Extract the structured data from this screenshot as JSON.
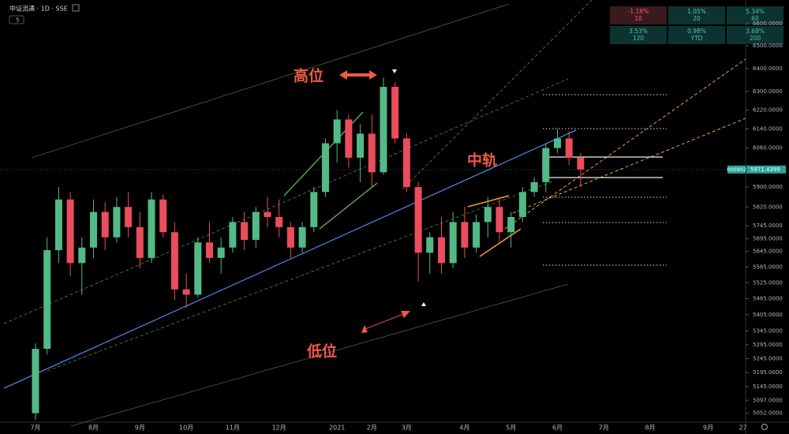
{
  "chart_data": {
    "type": "candlestick",
    "title": "中证流通 · 1D · SSE",
    "symbol": "000902",
    "indicator_count": "5",
    "categories": [
      "7月",
      null,
      null,
      null,
      null,
      "8月",
      null,
      null,
      null,
      "9月",
      null,
      null,
      null,
      "10月",
      null,
      null,
      null,
      "11月",
      null,
      null,
      null,
      "12月",
      null,
      null,
      null,
      null,
      "2021",
      null,
      null,
      "2月",
      null,
      null,
      "3月",
      null,
      null,
      null,
      null,
      "4月",
      null,
      null,
      null,
      "5月",
      null,
      null,
      null,
      "6月",
      null,
      null,
      null,
      "7月",
      null,
      null,
      null,
      "8月",
      null,
      null,
      null,
      null,
      "9月",
      null,
      null,
      "27"
    ],
    "open": [
      5052,
      5280,
      5650,
      5850,
      5600,
      5660,
      5800,
      5700,
      5820,
      5740,
      5620,
      5850,
      5720,
      5500,
      5480,
      5680,
      5620,
      5660,
      5760,
      5690,
      5800,
      5780,
      5740,
      5660,
      5740,
      5880,
      6080,
      6180,
      6020,
      6120,
      5960,
      6320,
      6100,
      5900,
      5640,
      5700,
      5600,
      5760,
      5660,
      5760,
      5820,
      5720,
      5780,
      5880,
      5920,
      6060,
      6100,
      6020,
      null,
      null,
      null,
      null,
      null,
      null,
      null,
      null,
      null,
      null,
      null,
      null,
      null,
      null
    ],
    "high": [
      5300,
      5700,
      5900,
      5880,
      5700,
      5850,
      5840,
      5860,
      5880,
      5800,
      5880,
      5870,
      5760,
      5560,
      5700,
      5760,
      5700,
      5780,
      5800,
      5820,
      5860,
      5850,
      5760,
      5760,
      5900,
      6100,
      6220,
      6200,
      6160,
      6200,
      6360,
      6340,
      6120,
      5920,
      5720,
      5780,
      5800,
      5820,
      5790,
      5860,
      5860,
      5800,
      5900,
      5940,
      6080,
      6140,
      6130,
      6040,
      null,
      null,
      null,
      null,
      null,
      null,
      null,
      null,
      null,
      null,
      null,
      null,
      null,
      null
    ],
    "low": [
      5030,
      5260,
      5600,
      5550,
      5480,
      5620,
      5650,
      5680,
      5700,
      5580,
      5600,
      5700,
      5460,
      5430,
      5470,
      5600,
      5560,
      5640,
      5650,
      5660,
      5740,
      5700,
      5620,
      5640,
      5720,
      5860,
      6000,
      5980,
      5920,
      5900,
      5950,
      6080,
      5880,
      5530,
      5560,
      5560,
      5580,
      5620,
      5640,
      5700,
      5680,
      5660,
      5760,
      5860,
      5880,
      6040,
      5990,
      5900,
      null,
      null,
      null,
      null,
      null,
      null,
      null,
      null,
      null,
      null,
      null,
      null,
      null,
      null
    ],
    "close": [
      5280,
      5650,
      5850,
      5600,
      5660,
      5800,
      5700,
      5820,
      5740,
      5620,
      5850,
      5720,
      5500,
      5480,
      5680,
      5620,
      5660,
      5760,
      5690,
      5800,
      5780,
      5740,
      5660,
      5740,
      5880,
      6080,
      6180,
      6020,
      6120,
      5960,
      6320,
      6100,
      5900,
      5640,
      5700,
      5600,
      5760,
      5660,
      5760,
      5820,
      5720,
      5780,
      5880,
      5920,
      6060,
      6100,
      6020,
      5971.4399,
      null,
      null,
      null,
      null,
      null,
      null,
      null,
      null,
      null,
      null,
      null,
      null,
      null,
      null
    ],
    "up_color": "#53b987",
    "down_color": "#eb4d5c",
    "ylim": [
      5021,
      6708
    ],
    "log_scale": true,
    "yticks": [
      {
        "value": 6600,
        "label": "6600.0000"
      },
      {
        "value": 6500,
        "label": "6500.0000"
      },
      {
        "value": 6400,
        "label": "6400.0000"
      },
      {
        "value": 6300,
        "label": "6300.0000"
      },
      {
        "value": 6220,
        "label": "6220.0000"
      },
      {
        "value": 6140,
        "label": "6140.0000"
      },
      {
        "value": 6060,
        "label": "6060.0000"
      },
      {
        "value": 5900,
        "label": "5900.0000"
      },
      {
        "value": 5820,
        "label": "5820.0000"
      },
      {
        "value": 5745,
        "label": "5745.0000"
      },
      {
        "value": 5695,
        "label": "5695.0000"
      },
      {
        "value": 5645,
        "label": "5645.0000"
      },
      {
        "value": 5585,
        "label": "5585.0000"
      },
      {
        "value": 5525,
        "label": "5525.0000"
      },
      {
        "value": 5465,
        "label": "5465.0000"
      },
      {
        "value": 5405,
        "label": "5405.0000"
      },
      {
        "value": 5345,
        "label": "5345.0000"
      },
      {
        "value": 5295,
        "label": "5295.0000"
      },
      {
        "value": 5245,
        "label": "5245.0000"
      },
      {
        "value": 5195,
        "label": "5195.0000"
      },
      {
        "value": 5145,
        "label": "5145.0000"
      },
      {
        "value": 5097,
        "label": "5097.0000"
      },
      {
        "value": 5052,
        "label": "5052.0000"
      }
    ],
    "grid": false,
    "annotations": [
      "高位",
      "低位",
      "中轨"
    ]
  },
  "performance": [
    {
      "change": "-1.18%",
      "period": "10"
    },
    {
      "change": "1.05%",
      "period": "20"
    },
    {
      "change": "5.34%",
      "period": "60"
    },
    {
      "change": "3.53%",
      "period": "120"
    },
    {
      "change": "0.98%",
      "period": "YTD"
    },
    {
      "change": "3.68%",
      "period": "200"
    }
  ]
}
